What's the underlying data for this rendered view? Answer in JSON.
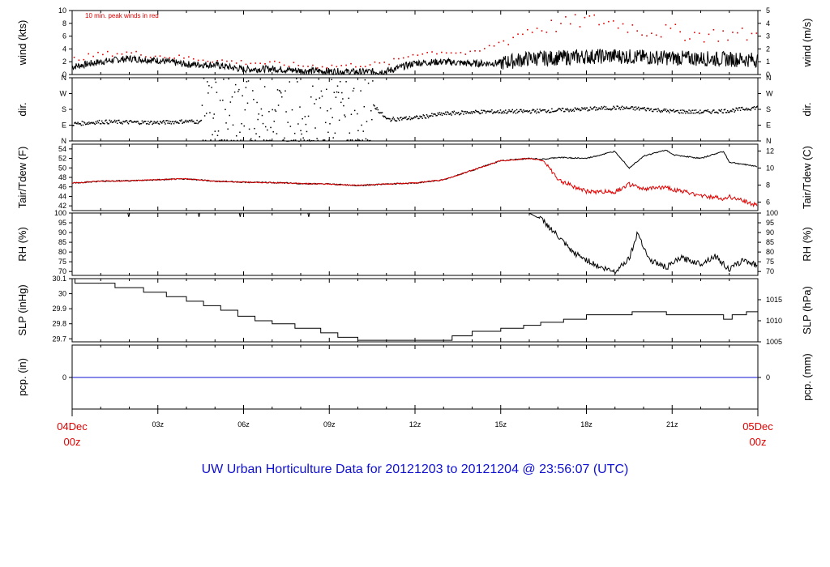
{
  "title": "UW Urban Horticulture Data for 20121203  to  20121204 @ 23:56:07  (UTC)",
  "colors": {
    "title": "#1010d0",
    "peak": "#e00000",
    "dew": "#e00000",
    "pcp": "#1010d0",
    "date_label": "#e00000",
    "line": "#000000"
  },
  "chart_data": [
    {
      "type": "line",
      "ylabel": "wind (kts)",
      "ylabel_right": "wind (m/s)",
      "ylim": [
        0,
        10
      ],
      "ylim_right": [
        0,
        5
      ],
      "yticks": [
        0,
        2,
        4,
        6,
        8,
        10
      ],
      "yticks_right": [
        0,
        1,
        2,
        3,
        4,
        5
      ],
      "annotation": "10 min. peak winds in red",
      "x": [
        0,
        1,
        2,
        3,
        4,
        5,
        6,
        7,
        8,
        9,
        10,
        11,
        12,
        13,
        14,
        15,
        16,
        17,
        18,
        19,
        20,
        21,
        22,
        23,
        24
      ],
      "series": [
        {
          "role": "wind",
          "values": [
            1.2,
            2.0,
            2.5,
            2.2,
            1.6,
            1.5,
            0.8,
            0.9,
            0.6,
            0.5,
            0.4,
            0.5,
            1.8,
            2.0,
            1.7,
            1.8,
            2.5,
            2.6,
            2.8,
            2.9,
            2.7,
            2.6,
            2.5,
            2.4,
            2.3
          ]
        },
        {
          "role": "peak",
          "values": [
            2.5,
            3.3,
            3.5,
            3.0,
            2.7,
            2.3,
            2.0,
            1.8,
            1.5,
            1.4,
            1.6,
            1.8,
            3.4,
            3.7,
            3.3,
            5.2,
            7.2,
            7.8,
            8.6,
            8.2,
            7.0,
            6.8,
            6.3,
            6.4,
            6.2
          ]
        }
      ]
    },
    {
      "type": "scatter",
      "ylabel": "dir.",
      "ylabel_right": "dir.",
      "ytick_labels": [
        "N",
        "E",
        "S",
        "W",
        "N"
      ],
      "ylim": [
        0,
        360
      ],
      "x": [
        0,
        1,
        2,
        3,
        4,
        5,
        6,
        7,
        8,
        9,
        10,
        11,
        12,
        13,
        14,
        15,
        16,
        17,
        18,
        19,
        20,
        21,
        22,
        23,
        24
      ],
      "values": [
        100,
        112,
        110,
        108,
        115,
        110,
        35,
        160,
        200,
        90,
        300,
        125,
        135,
        158,
        168,
        170,
        172,
        178,
        185,
        192,
        186,
        172,
        168,
        176,
        195
      ]
    },
    {
      "type": "line",
      "ylabel": "Tair/Tdew (F)",
      "ylabel_right": "Tair/Tdew (C)",
      "ylim": [
        41,
        55
      ],
      "ylim_right": [
        5,
        12.8
      ],
      "yticks": [
        42,
        44,
        46,
        48,
        50,
        52,
        54
      ],
      "yticks_right": [
        6,
        8,
        10,
        12
      ],
      "x": [
        0,
        1,
        2,
        3,
        4,
        5,
        6,
        7,
        8,
        9,
        10,
        11,
        12,
        13,
        14,
        15,
        16,
        16.5,
        17,
        18,
        19,
        19.5,
        20,
        20.8,
        21,
        22,
        22.8,
        23,
        24
      ],
      "series": [
        {
          "role": "air",
          "values": [
            46.8,
            47.2,
            47.3,
            47.5,
            47.7,
            47.2,
            47.0,
            46.9,
            46.7,
            46.6,
            46.3,
            46.6,
            46.8,
            47.5,
            49.5,
            51.5,
            52.0,
            51.8,
            52.2,
            52.0,
            53.5,
            50.0,
            52.5,
            53.8,
            52.8,
            52.0,
            53.5,
            51.2,
            50.3
          ]
        },
        {
          "role": "dew",
          "values": [
            46.8,
            47.2,
            47.3,
            47.5,
            47.7,
            47.2,
            47.0,
            46.9,
            46.7,
            46.6,
            46.3,
            46.6,
            46.8,
            47.5,
            49.5,
            51.5,
            52.0,
            51.5,
            47.5,
            45.0,
            45.0,
            46.5,
            45.5,
            46.0,
            45.5,
            44.2,
            43.5,
            44.0,
            42.0
          ]
        }
      ]
    },
    {
      "type": "line",
      "ylabel": "RH (%)",
      "ylabel_right": "RH (%)",
      "ylim": [
        68,
        100
      ],
      "yticks": [
        70,
        75,
        80,
        85,
        90,
        95,
        100
      ],
      "x": [
        0,
        16,
        16.5,
        17,
        17.5,
        18,
        18.5,
        19,
        19.5,
        19.8,
        20.2,
        20.8,
        21.3,
        22,
        22.5,
        23,
        23.5,
        24
      ],
      "values": [
        100,
        100,
        96,
        88,
        80,
        76,
        72,
        70,
        77,
        90,
        76,
        72,
        77,
        74,
        78,
        71,
        76,
        73
      ]
    },
    {
      "type": "line",
      "ylabel": "SLP (inHg)",
      "ylabel_right": "SLP (hPa)",
      "ylim": [
        29.68,
        30.1
      ],
      "ylim_right": [
        1005,
        1020
      ],
      "yticks": [
        29.7,
        29.8,
        29.9,
        30.0,
        30.1
      ],
      "yticks_right": [
        1005,
        1010,
        1015
      ],
      "x": [
        0,
        0.1,
        1.5,
        2.5,
        3.3,
        4.0,
        4.6,
        5.2,
        5.8,
        6.4,
        7.0,
        7.8,
        8.7,
        9.3,
        10.0,
        11.0,
        13.3,
        14.0,
        15.0,
        15.8,
        16.4,
        17.2,
        18.0,
        19.0,
        19.6,
        20.8,
        21.5,
        22.8,
        23.1,
        23.6,
        24
      ],
      "values": [
        30.1,
        30.07,
        30.04,
        30.01,
        29.98,
        29.95,
        29.92,
        29.89,
        29.85,
        29.82,
        29.8,
        29.77,
        29.74,
        29.71,
        29.69,
        29.69,
        29.72,
        29.75,
        29.77,
        29.79,
        29.81,
        29.83,
        29.86,
        29.86,
        29.88,
        29.86,
        29.86,
        29.83,
        29.86,
        29.88,
        29.88
      ]
    },
    {
      "type": "line",
      "ylabel": "pcp. (in)",
      "ylabel_right": "pcp. (mm)",
      "yticks": [
        0
      ],
      "yticks_right": [
        0
      ],
      "x": [
        0,
        24
      ],
      "values": [
        0,
        0
      ]
    }
  ],
  "xaxis": {
    "start_date": "04Dec",
    "start_time": "00z",
    "end_date": "05Dec",
    "end_time": "00z",
    "ticks": [
      {
        "h": 3,
        "label": "03z"
      },
      {
        "h": 6,
        "label": "06z"
      },
      {
        "h": 9,
        "label": "09z"
      },
      {
        "h": 12,
        "label": "12z"
      },
      {
        "h": 15,
        "label": "15z"
      },
      {
        "h": 18,
        "label": "18z"
      },
      {
        "h": 21,
        "label": "21z"
      }
    ]
  }
}
